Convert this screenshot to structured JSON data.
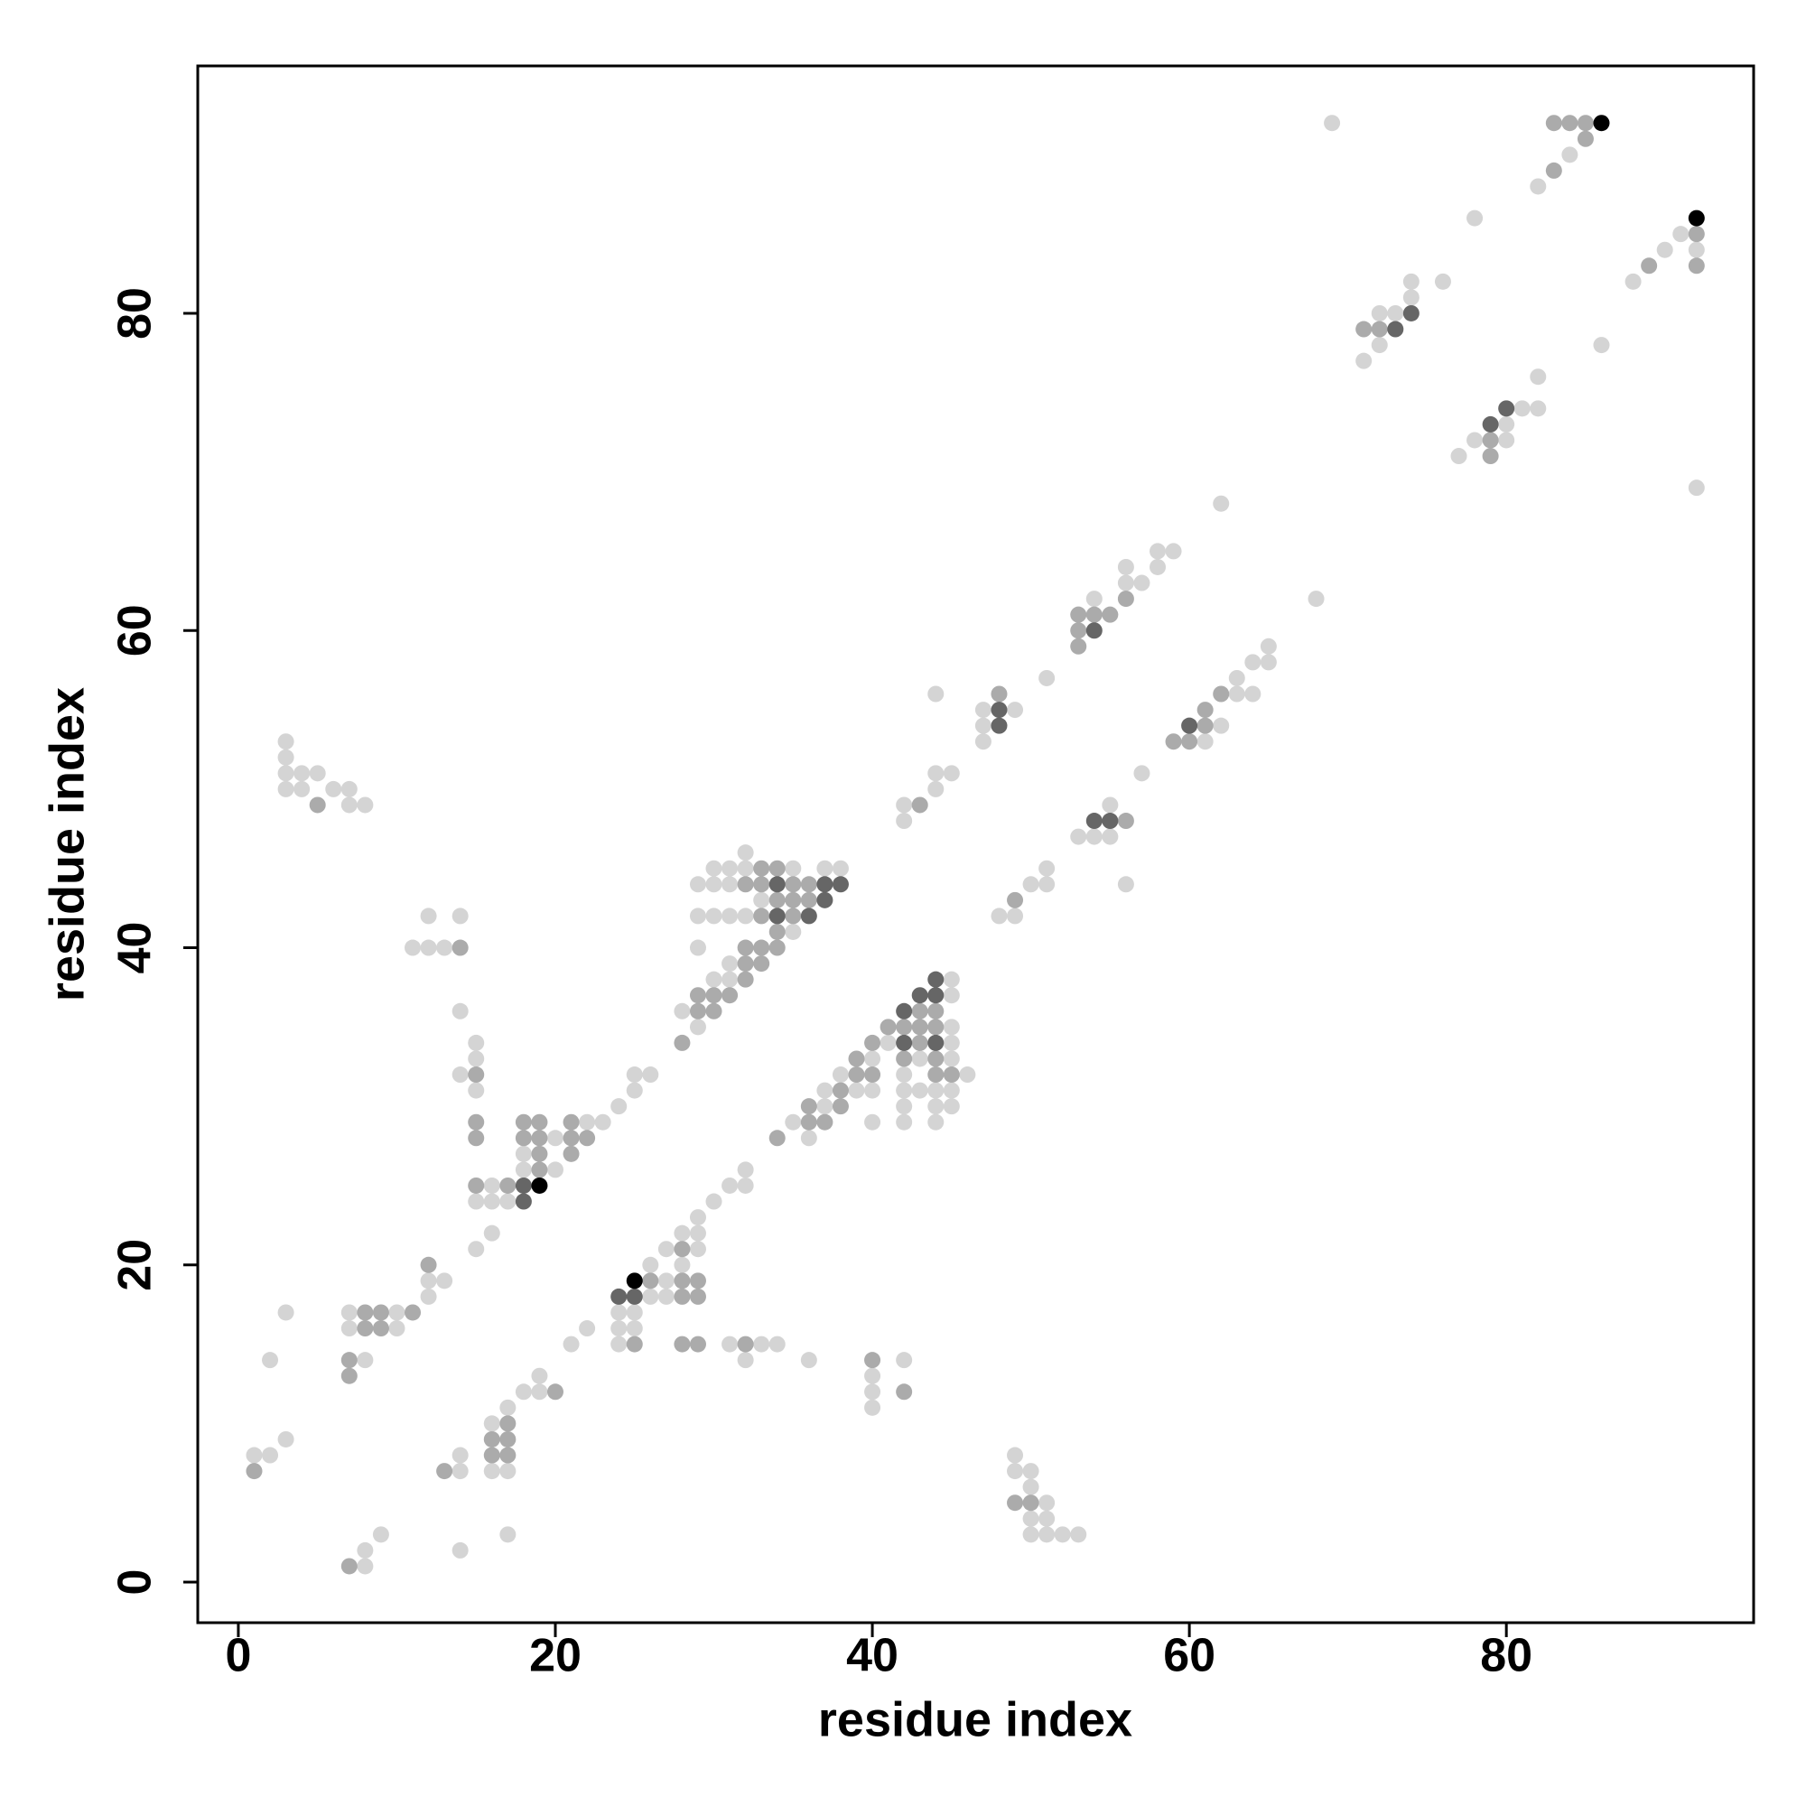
{
  "chart_data": {
    "type": "scatter",
    "x_label": "residue index",
    "y_label": "residue index",
    "xlim": [
      -2.56,
      95.6
    ],
    "ylim": [
      -2.56,
      95.6
    ],
    "xticks": [
      0,
      20,
      40,
      60,
      80
    ],
    "yticks": [
      0,
      20,
      40,
      60,
      80
    ],
    "grid": false,
    "series": [
      {
        "color": "#d4d4d4",
        "x": [
          69,
          84,
          82,
          78,
          91,
          90,
          92,
          88,
          74,
          76,
          74,
          72,
          73,
          72,
          71,
          86,
          82,
          81,
          82,
          80,
          78,
          80,
          77,
          92,
          62,
          58,
          59,
          56,
          58,
          56,
          57,
          68,
          54,
          65,
          64,
          65,
          63,
          51,
          63,
          64,
          44,
          47,
          49,
          47,
          47,
          62,
          61,
          57,
          44,
          45,
          44,
          42,
          42,
          55,
          53,
          54,
          55,
          56,
          51,
          50,
          51,
          48,
          49,
          32,
          30,
          31,
          32,
          35,
          37,
          38,
          29,
          30,
          31,
          33,
          29,
          30,
          31,
          32,
          35,
          29,
          31,
          30,
          31,
          28,
          29,
          12,
          14,
          11,
          12,
          13,
          14,
          15,
          15,
          14,
          15,
          3,
          3,
          3,
          4,
          5,
          3,
          4,
          6,
          7,
          7,
          8,
          45,
          45,
          45,
          41,
          45,
          40,
          43,
          45,
          38,
          42,
          46,
          37,
          39,
          40,
          42,
          43,
          44,
          45,
          37,
          42,
          44,
          45,
          35,
          40,
          42,
          44,
          36,
          25,
          26,
          25,
          24,
          23,
          22,
          20,
          20,
          18,
          18,
          16,
          15,
          16,
          17,
          16,
          15,
          32,
          31,
          32,
          30,
          29,
          28,
          29,
          27,
          29,
          26,
          28,
          27,
          26,
          27,
          24,
          25,
          24,
          25,
          22,
          21,
          24,
          31,
          33,
          34,
          32,
          36,
          42,
          40,
          40,
          40,
          12,
          13,
          12,
          7,
          10,
          7,
          10,
          3,
          2,
          8,
          19,
          18,
          19,
          17,
          16,
          16,
          17,
          14,
          14,
          1,
          2,
          3,
          9,
          8,
          8,
          14,
          17,
          49,
          49,
          50,
          50,
          51,
          50,
          51,
          50,
          51,
          52,
          53
        ],
        "y": [
          92,
          90,
          88,
          86,
          85,
          84,
          84,
          82,
          82,
          82,
          81,
          80,
          80,
          78,
          77,
          78,
          76,
          74,
          74,
          73,
          72,
          72,
          71,
          69,
          68,
          65,
          65,
          64,
          64,
          63,
          63,
          62,
          62,
          59,
          58,
          58,
          57,
          57,
          56,
          56,
          56,
          55,
          55,
          54,
          53,
          54,
          53,
          51,
          51,
          51,
          50,
          49,
          48,
          49,
          47,
          47,
          47,
          44,
          45,
          44,
          44,
          42,
          42,
          46,
          45,
          45,
          45,
          45,
          45,
          45,
          44,
          44,
          44,
          43,
          42,
          42,
          42,
          42,
          41,
          40,
          39,
          38,
          38,
          36,
          35,
          42,
          42,
          40,
          40,
          40,
          36,
          34,
          33,
          32,
          31,
          53,
          52,
          51,
          51,
          51,
          50,
          50,
          50,
          50,
          49,
          49,
          38,
          37,
          35,
          34,
          34,
          33,
          33,
          33,
          32,
          32,
          32,
          31,
          31,
          31,
          31,
          31,
          31,
          31,
          30,
          30,
          30,
          30,
          29,
          29,
          29,
          29,
          28,
          32,
          32,
          31,
          30,
          29,
          29,
          26,
          28,
          27,
          26,
          25,
          24,
          24,
          24,
          22,
          21,
          26,
          25,
          25,
          24,
          23,
          22,
          22,
          21,
          21,
          20,
          20,
          19,
          18,
          18,
          17,
          17,
          16,
          16,
          16,
          15,
          15,
          15,
          15,
          15,
          14,
          14,
          14,
          13,
          12,
          11,
          19,
          19,
          18,
          17,
          17,
          16,
          16,
          17,
          14,
          14,
          13,
          12,
          12,
          11,
          10,
          7,
          7,
          8,
          7,
          8,
          8,
          9,
          3,
          2,
          1,
          2,
          3,
          8,
          7,
          7,
          6,
          5,
          4,
          4,
          3,
          3,
          3,
          3
        ]
      },
      {
        "color": "#ababab",
        "x": [
          83,
          84,
          85,
          85,
          83,
          92,
          89,
          92,
          71,
          72,
          79,
          79,
          56,
          53,
          54,
          55,
          53,
          53,
          62,
          48,
          61,
          61,
          59,
          60,
          43,
          56,
          49,
          33,
          34,
          32,
          33,
          35,
          36,
          34,
          35,
          36,
          33,
          35,
          34,
          32,
          33,
          34,
          32,
          33,
          32,
          29,
          30,
          31,
          29,
          30,
          28,
          14,
          15,
          5,
          43,
          44,
          41,
          42,
          43,
          44,
          40,
          43,
          39,
          42,
          44,
          39,
          40,
          44,
          45,
          38,
          38,
          36,
          36,
          37,
          34,
          21,
          21,
          22,
          21,
          18,
          19,
          18,
          19,
          19,
          19,
          15,
          15,
          15,
          17,
          28,
          26,
          28,
          29,
          28,
          29,
          25,
          28,
          29,
          32,
          40,
          42,
          12,
          8,
          9,
          11,
          8,
          9,
          7,
          7,
          20,
          17,
          16,
          17,
          16,
          17,
          13,
          1,
          7,
          49,
          50
        ],
        "y": [
          92,
          92,
          92,
          91,
          89,
          85,
          83,
          83,
          79,
          79,
          72,
          71,
          62,
          61,
          61,
          61,
          60,
          59,
          56,
          56,
          55,
          54,
          53,
          53,
          49,
          48,
          43,
          45,
          45,
          44,
          44,
          44,
          44,
          43,
          43,
          43,
          42,
          42,
          41,
          40,
          40,
          40,
          39,
          39,
          38,
          37,
          37,
          37,
          36,
          36,
          34,
          40,
          32,
          49,
          36,
          36,
          35,
          35,
          35,
          35,
          34,
          34,
          33,
          33,
          33,
          32,
          32,
          32,
          32,
          31,
          30,
          30,
          29,
          29,
          28,
          29,
          28,
          28,
          27,
          29,
          29,
          28,
          28,
          27,
          26,
          29,
          28,
          25,
          25,
          21,
          19,
          19,
          19,
          18,
          18,
          15,
          15,
          15,
          15,
          14,
          12,
          20,
          17,
          17,
          17,
          16,
          16,
          14,
          13,
          12,
          10,
          9,
          9,
          8,
          8,
          7,
          7,
          1,
          5,
          5
        ]
      },
      {
        "color": "#666666",
        "x": [
          74,
          73,
          80,
          79,
          54,
          48,
          48,
          60,
          54,
          55,
          34,
          37,
          38,
          37,
          34,
          36,
          44,
          43,
          44,
          42,
          42,
          44,
          18,
          18,
          24,
          25
        ],
        "y": [
          80,
          79,
          74,
          73,
          60,
          55,
          54,
          54,
          48,
          48,
          44,
          44,
          44,
          43,
          42,
          42,
          38,
          37,
          37,
          36,
          34,
          34,
          25,
          24,
          18,
          18
        ]
      },
      {
        "color": "#000000",
        "x": [
          86,
          92,
          19,
          25
        ],
        "y": [
          92,
          86,
          25,
          19
        ]
      }
    ]
  }
}
